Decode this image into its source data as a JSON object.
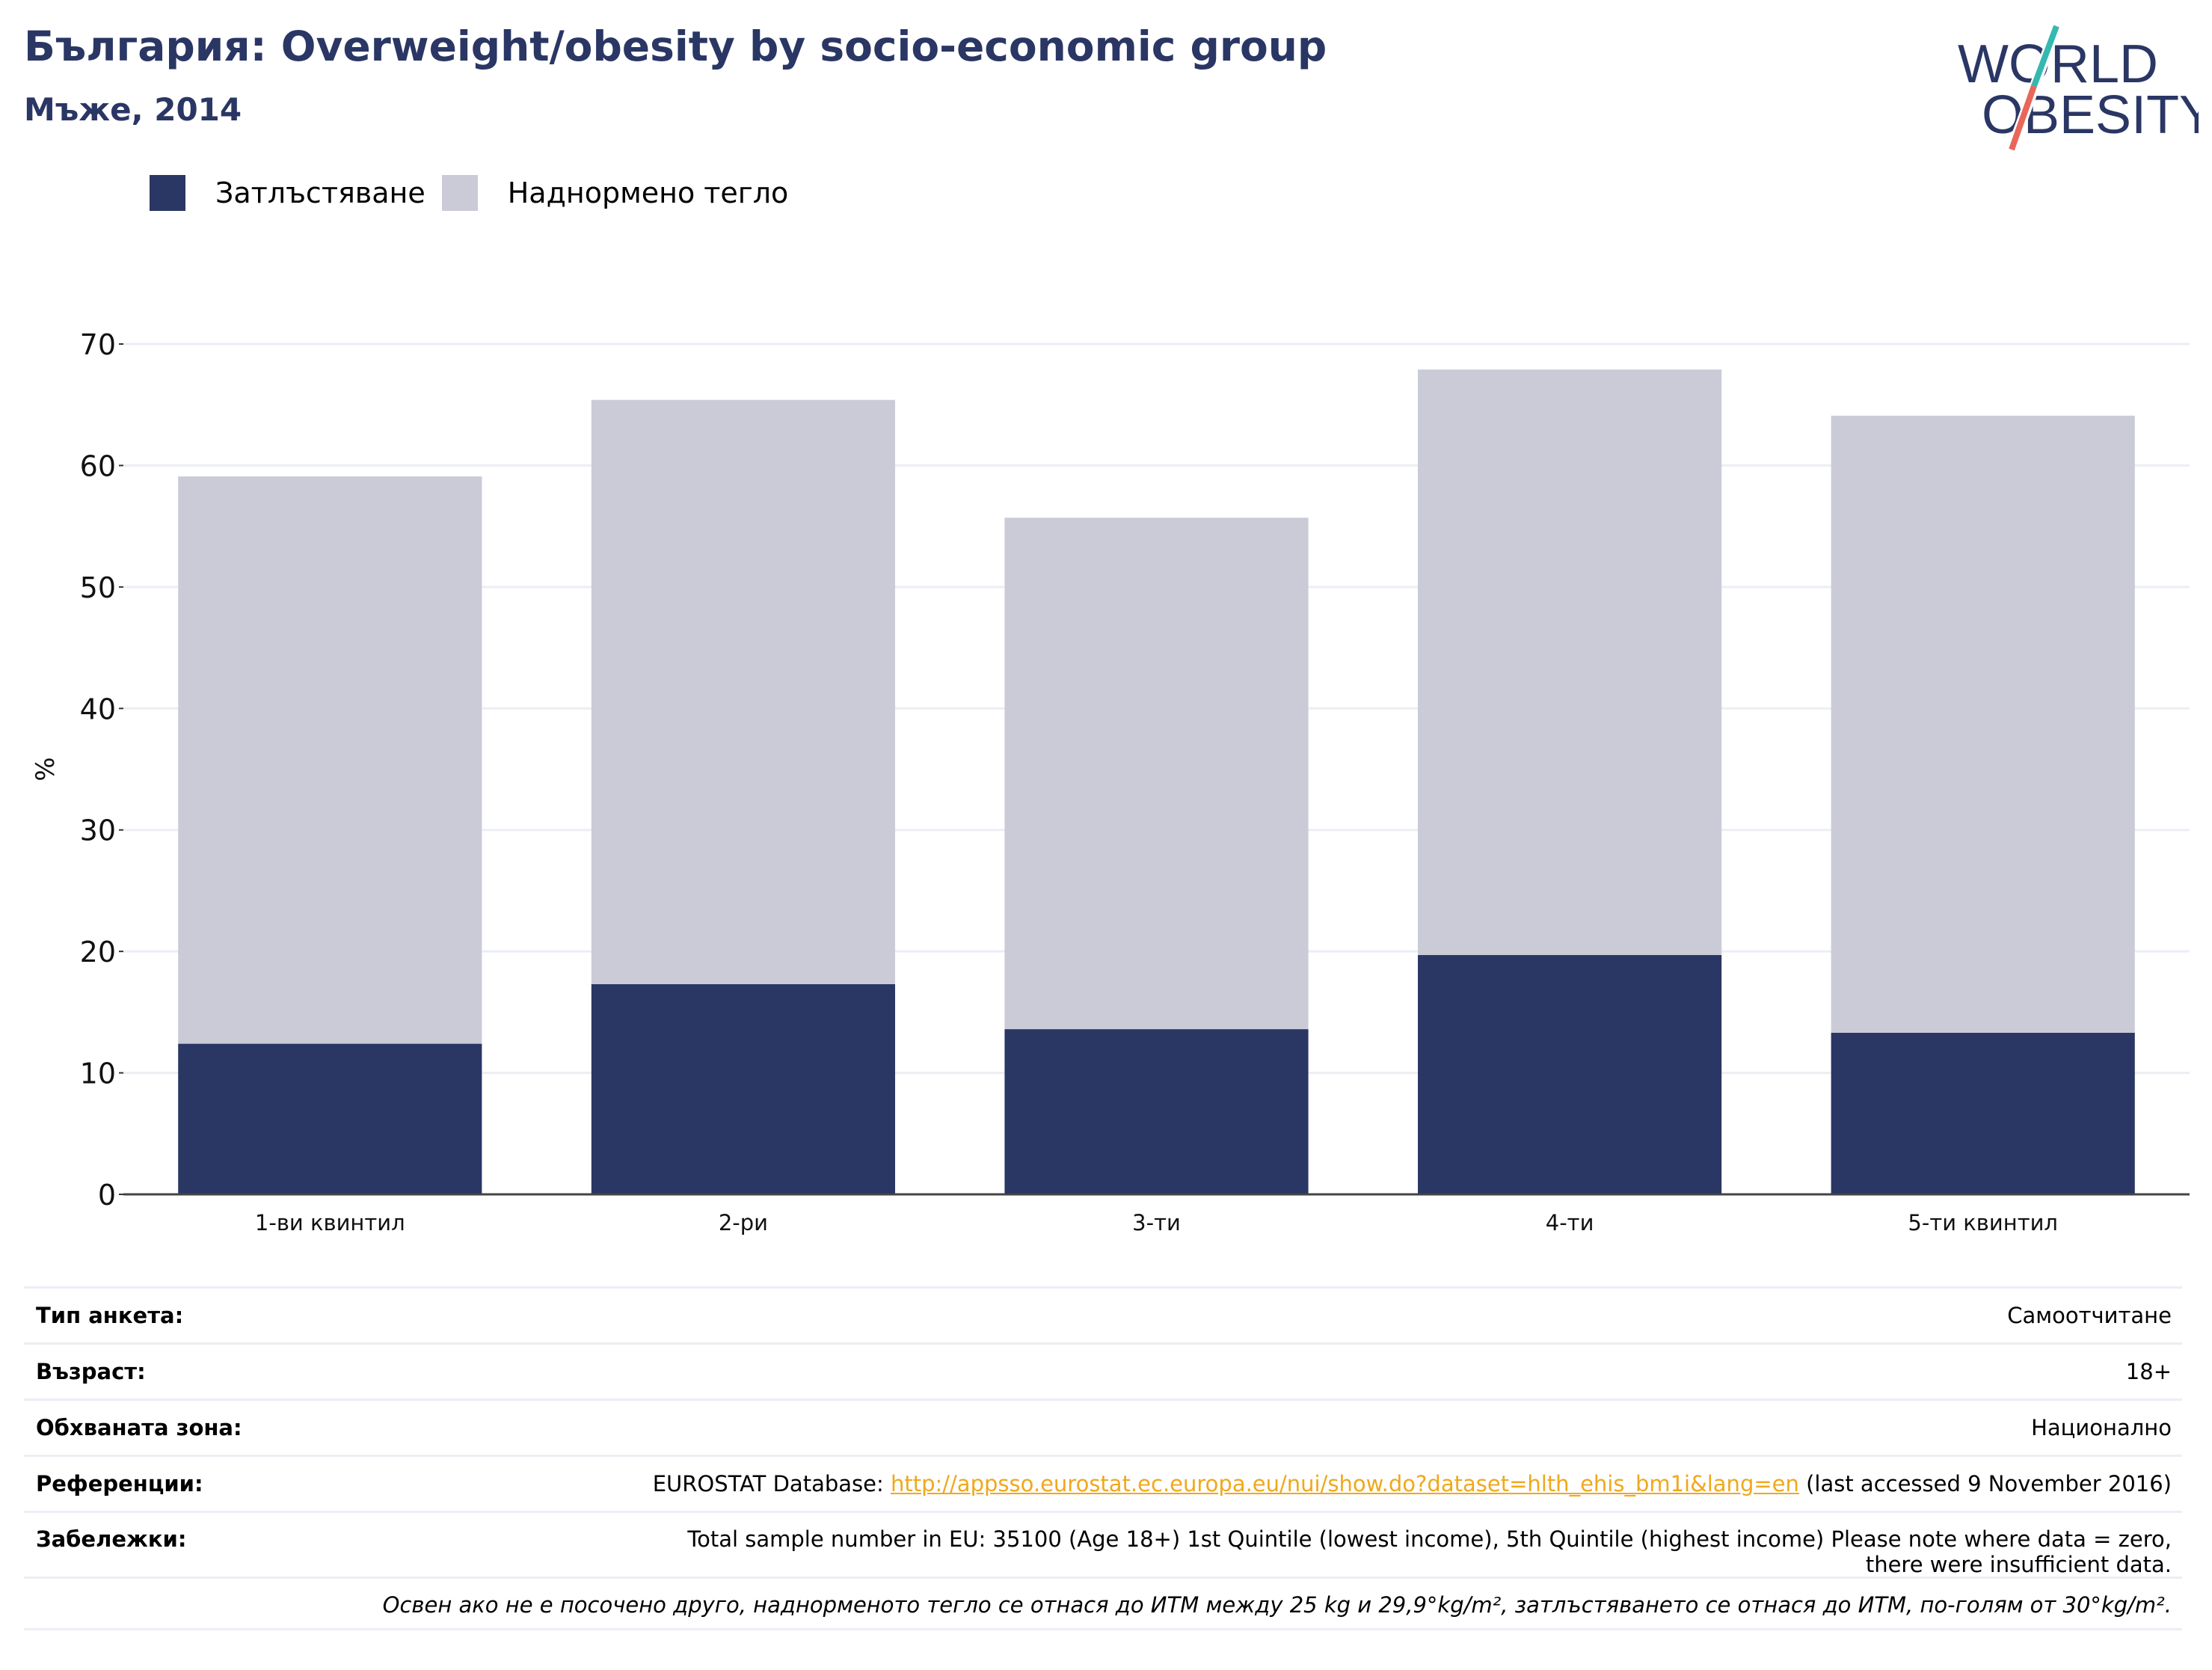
{
  "header": {
    "title": "България: Overweight/obesity by socio-economic group",
    "subtitle": "Мъже, 2014"
  },
  "logo": {
    "line1": "WORLD",
    "line2": "OBESITY"
  },
  "colors": {
    "obesity": "#2a3664",
    "overweight": "#cacbd7",
    "title": "#2a3664",
    "grid": "#eceef4",
    "link": "#f0a81b"
  },
  "chart_data": {
    "type": "bar",
    "stacked": true,
    "categories": [
      "1-ви квинтил",
      "2-ри",
      "3-ти",
      "4-ти",
      "5-ти квинтил"
    ],
    "series": [
      {
        "name": "Затлъстяване",
        "values": [
          12.4,
          17.3,
          13.6,
          19.7,
          13.3
        ]
      },
      {
        "name": "Наднормено тегло",
        "values": [
          46.7,
          48.1,
          42.1,
          48.2,
          50.8
        ]
      }
    ],
    "ylabel": "%",
    "ylim": [
      0,
      70
    ],
    "yticks": [
      0,
      10,
      20,
      30,
      40,
      50,
      60,
      70
    ],
    "grid": true,
    "legend_position": "top-left"
  },
  "info": {
    "survey_type": {
      "label": "Тип анкета:",
      "value": "Самоотчитане"
    },
    "age": {
      "label": "Възраст:",
      "value": "18+"
    },
    "area": {
      "label": "Обхваната зона:",
      "value": "Национално"
    },
    "references": {
      "label": "Референции:",
      "prefix": "EUROSTAT Database: ",
      "link": "http://appsso.eurostat.ec.europa.eu/nui/show.do?dataset=hlth_ehis_bm1i&lang=en",
      "suffix": " (last accessed 9 November 2016)"
    },
    "notes": {
      "label": "Забележки:",
      "line1": "Total sample number in EU: 35100 (Age 18+) 1st Quintile (lowest income), 5th Quintile (highest income) Please note where data = zero,",
      "line2": "there were insufficient data."
    },
    "footnote": "Освен ако не е посочено друго, наднорменото тегло се отнася до ИТМ между 25 kg и 29,9°kg/m², затлъстяването се отнася до ИТМ, по-голям от 30°kg/m²."
  }
}
